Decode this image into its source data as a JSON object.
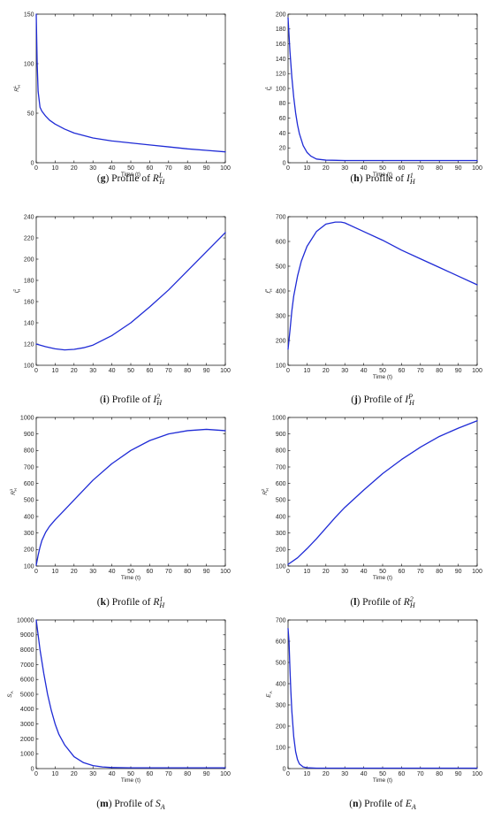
{
  "chart_data": [
    {
      "panel": "g",
      "type": "line",
      "xlabel": "Time (t)",
      "ylabel": "R_H^L",
      "xlim": [
        0,
        100
      ],
      "ylim": [
        0,
        150
      ],
      "xticks": [
        0,
        10,
        20,
        30,
        40,
        50,
        60,
        70,
        80,
        90,
        100
      ],
      "yticks": [
        0,
        50,
        100,
        150
      ],
      "grid": false,
      "caption": {
        "letter": "g",
        "text": "Profile of",
        "var": "R",
        "sub": "H",
        "sup": "L"
      },
      "series": [
        {
          "x": [
            0,
            0.5,
            1,
            2,
            3,
            5,
            7,
            10,
            15,
            20,
            30,
            40,
            50,
            60,
            70,
            80,
            90,
            100
          ],
          "y": [
            150,
            100,
            72,
            56,
            52,
            47,
            43,
            39,
            34,
            30,
            25,
            22,
            20,
            18,
            16,
            14,
            12.5,
            11
          ]
        }
      ]
    },
    {
      "panel": "h",
      "type": "line",
      "xlabel": "Time (t)",
      "ylabel": "I_H^1",
      "xlim": [
        0,
        100
      ],
      "ylim": [
        0,
        200
      ],
      "xticks": [
        0,
        10,
        20,
        30,
        40,
        50,
        60,
        70,
        80,
        90,
        100
      ],
      "yticks": [
        0,
        20,
        40,
        60,
        80,
        100,
        120,
        140,
        160,
        180,
        200
      ],
      "grid": false,
      "caption": {
        "letter": "h",
        "text": "Profile of",
        "var": "I",
        "sub": "H",
        "sup": "1"
      },
      "series": [
        {
          "x": [
            0,
            1,
            2,
            3,
            4,
            5,
            6,
            8,
            10,
            12,
            15,
            20,
            30,
            40,
            60,
            80,
            100
          ],
          "y": [
            195,
            150,
            115,
            88,
            67,
            51,
            39,
            23,
            14,
            9,
            5,
            3.5,
            3,
            3,
            3,
            3,
            3
          ]
        }
      ]
    },
    {
      "panel": "i",
      "type": "line",
      "xlabel": "",
      "ylabel": "I_H^2",
      "xlim": [
        0,
        100
      ],
      "ylim": [
        100,
        240
      ],
      "xticks": [
        0,
        10,
        20,
        30,
        40,
        50,
        60,
        70,
        80,
        90,
        100
      ],
      "yticks": [
        100,
        120,
        140,
        160,
        180,
        200,
        220,
        240
      ],
      "grid": false,
      "caption": {
        "letter": "i",
        "text": "Profile of",
        "var": "I",
        "sub": "H",
        "sup": "2"
      },
      "series": [
        {
          "x": [
            0,
            5,
            10,
            15,
            20,
            25,
            30,
            40,
            50,
            60,
            70,
            80,
            90,
            100
          ],
          "y": [
            120,
            117.5,
            115.5,
            114.5,
            115,
            116.5,
            119,
            128,
            140,
            155,
            171,
            189,
            207,
            225
          ]
        }
      ]
    },
    {
      "panel": "j",
      "type": "line",
      "xlabel": "Time (t)",
      "ylabel": "I_H^P",
      "xlim": [
        0,
        100
      ],
      "ylim": [
        100,
        700
      ],
      "xticks": [
        0,
        10,
        20,
        30,
        40,
        50,
        60,
        70,
        80,
        90,
        100
      ],
      "yticks": [
        100,
        200,
        300,
        400,
        500,
        600,
        700
      ],
      "grid": false,
      "caption": {
        "letter": "j",
        "text": "Profile of",
        "var": "I",
        "sub": "H",
        "sup": "P"
      },
      "series": [
        {
          "x": [
            0,
            1,
            2,
            3,
            5,
            7,
            10,
            15,
            20,
            25,
            28,
            30,
            40,
            50,
            60,
            70,
            80,
            90,
            100
          ],
          "y": [
            165,
            240,
            320,
            380,
            460,
            520,
            580,
            640,
            670,
            678,
            678,
            675,
            640,
            605,
            565,
            530,
            495,
            460,
            425
          ]
        }
      ]
    },
    {
      "panel": "k",
      "type": "line",
      "xlabel": "Time (t)",
      "ylabel": "R_H^1",
      "xlim": [
        0,
        100
      ],
      "ylim": [
        100,
        1000
      ],
      "xticks": [
        0,
        10,
        20,
        30,
        40,
        50,
        60,
        70,
        80,
        90,
        100
      ],
      "yticks": [
        100,
        200,
        300,
        400,
        500,
        600,
        700,
        800,
        900,
        1000
      ],
      "grid": false,
      "caption": {
        "letter": "k",
        "text": "Profile of",
        "var": "R",
        "sub": "H",
        "sup": "1"
      },
      "series": [
        {
          "x": [
            0,
            1,
            2,
            3,
            5,
            7,
            10,
            15,
            20,
            30,
            40,
            50,
            60,
            70,
            80,
            90,
            100
          ],
          "y": [
            105,
            165,
            215,
            255,
            305,
            340,
            380,
            440,
            500,
            620,
            720,
            800,
            860,
            900,
            920,
            928,
            920
          ]
        }
      ]
    },
    {
      "panel": "l",
      "type": "line",
      "xlabel": "Time (t)",
      "ylabel": "R_H^2",
      "xlim": [
        0,
        100
      ],
      "ylim": [
        100,
        1000
      ],
      "xticks": [
        0,
        10,
        20,
        30,
        40,
        50,
        60,
        70,
        80,
        90,
        100
      ],
      "yticks": [
        100,
        200,
        300,
        400,
        500,
        600,
        700,
        800,
        900,
        1000
      ],
      "grid": false,
      "caption": {
        "letter": "l",
        "text": "Profile of",
        "var": "R",
        "sub": "H",
        "sup": "2"
      },
      "series": [
        {
          "x": [
            0,
            5,
            10,
            15,
            20,
            25,
            30,
            40,
            50,
            60,
            70,
            80,
            90,
            100
          ],
          "y": [
            110,
            150,
            205,
            265,
            330,
            395,
            455,
            560,
            660,
            745,
            820,
            885,
            935,
            980
          ]
        }
      ]
    },
    {
      "panel": "m",
      "type": "line",
      "xlabel": "Time (t)",
      "ylabel": "S_A",
      "xlim": [
        0,
        100
      ],
      "ylim": [
        0,
        10000
      ],
      "xticks": [
        0,
        10,
        20,
        30,
        40,
        50,
        60,
        70,
        80,
        90,
        100
      ],
      "yticks": [
        0,
        1000,
        2000,
        3000,
        4000,
        5000,
        6000,
        7000,
        8000,
        9000,
        10000
      ],
      "grid": false,
      "caption": {
        "letter": "m",
        "text": "Profile of",
        "var": "S",
        "sub": "A",
        "sup": ""
      },
      "series": [
        {
          "x": [
            0,
            2,
            4,
            6,
            8,
            10,
            12,
            15,
            20,
            25,
            30,
            35,
            40,
            50,
            60,
            80,
            100
          ],
          "y": [
            10000,
            8000,
            6400,
            5000,
            3900,
            3000,
            2300,
            1600,
            800,
            400,
            200,
            110,
            70,
            50,
            50,
            50,
            50
          ]
        }
      ]
    },
    {
      "panel": "n",
      "type": "line",
      "xlabel": "Time (t)",
      "ylabel": "E_A",
      "xlim": [
        0,
        100
      ],
      "ylim": [
        0,
        700
      ],
      "xticks": [
        0,
        10,
        20,
        30,
        40,
        50,
        60,
        70,
        80,
        90,
        100
      ],
      "yticks": [
        0,
        100,
        200,
        300,
        400,
        500,
        600,
        700
      ],
      "grid": false,
      "caption": {
        "letter": "n",
        "text": "Profile of",
        "var": "E",
        "sub": "A",
        "sup": ""
      },
      "series": [
        {
          "x": [
            0,
            0.5,
            1,
            1.5,
            2,
            3,
            4,
            5,
            6,
            8,
            10,
            15,
            20,
            40,
            60,
            80,
            100
          ],
          "y": [
            660,
            600,
            470,
            360,
            270,
            150,
            80,
            42,
            22,
            8,
            4,
            2,
            2,
            2,
            2,
            2,
            2
          ]
        }
      ]
    }
  ]
}
